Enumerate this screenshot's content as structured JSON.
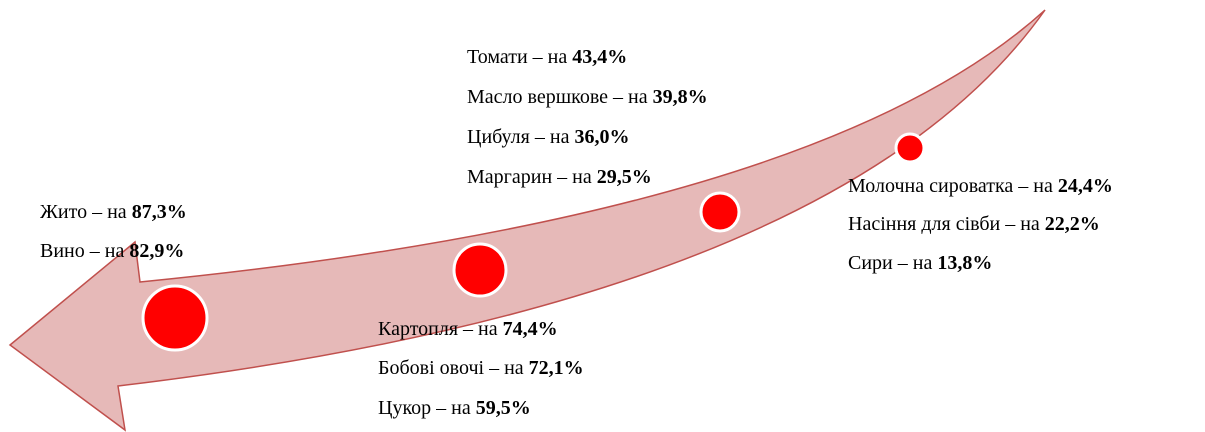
{
  "groups": [
    {
      "items": [
        {
          "label": "Жито – на",
          "value": "87,3%"
        },
        {
          "label": "Вино – на",
          "value": "82,9%"
        }
      ]
    },
    {
      "items": [
        {
          "label": "Картопля – на",
          "value": "74,4%"
        },
        {
          "label": "Бобові овочі – на",
          "value": "72,1%"
        },
        {
          "label": "Цукор – на",
          "value": "59,5%"
        }
      ]
    },
    {
      "items": [
        {
          "label": "Томати – на",
          "value": "43,4%"
        },
        {
          "label": "Масло вершкове – на",
          "value": "39,8%"
        },
        {
          "label": "Цибуля – на",
          "value": "36,0%"
        },
        {
          "label": "Маргарин – на",
          "value": "29,5%"
        }
      ]
    },
    {
      "items": [
        {
          "label": "Молочна сироватка – на",
          "value": "24,4%"
        },
        {
          "label": "Насіння для сівби – на",
          "value": "22,2%"
        },
        {
          "label": "Сири – на",
          "value": "13,8%"
        }
      ]
    }
  ]
}
